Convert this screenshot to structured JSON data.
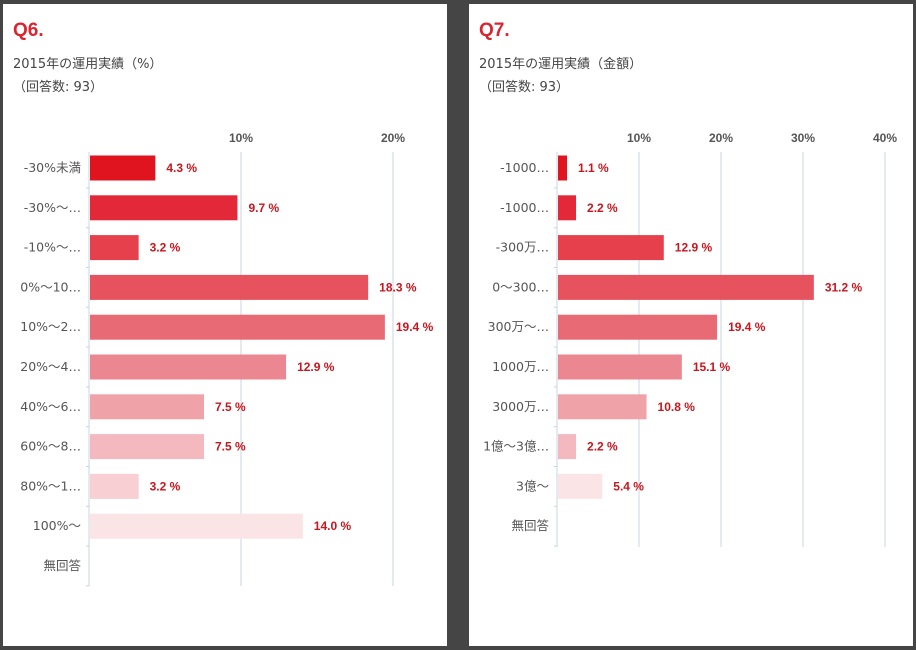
{
  "chart_data": [
    {
      "type": "bar",
      "orientation": "horizontal",
      "panel_label": "Q6.",
      "title": "2015年の運用実績（%）",
      "subtitle": "（回答数: 93）",
      "xlim": [
        0,
        22
      ],
      "ticks": [
        {
          "value": 10,
          "label": "10%"
        },
        {
          "value": 20,
          "label": "20%"
        }
      ],
      "grid": true,
      "categories": [
        "-30%未満",
        "-30%～…",
        "-10%～…",
        "0%～10…",
        "10%～2…",
        "20%～4…",
        "40%～6…",
        "60%～8…",
        "80%～1…",
        "100%～",
        "無回答"
      ],
      "values": [
        4.3,
        9.7,
        3.2,
        18.3,
        19.4,
        12.9,
        7.5,
        7.5,
        3.2,
        14.0,
        null
      ],
      "value_labels": [
        "4.3 %",
        "9.7 %",
        "3.2 %",
        "18.3 %",
        "19.4 %",
        "12.9 %",
        "7.5 %",
        "7.5 %",
        "3.2 %",
        "14.0 %",
        ""
      ],
      "colors": [
        "#e0141f",
        "#e3283a",
        "#e5404b",
        "#e6535f",
        "#e76a75",
        "#ea8791",
        "#f0a2a9",
        "#f4b9be",
        "#f8cfd2",
        "#fbe4e6",
        "#ffffff"
      ]
    },
    {
      "type": "bar",
      "orientation": "horizontal",
      "panel_label": "Q7.",
      "title": "2015年の運用実績（金額）",
      "subtitle": "（回答数: 93）",
      "xlim": [
        0,
        40
      ],
      "ticks": [
        {
          "value": 10,
          "label": "10%"
        },
        {
          "value": 20,
          "label": "20%"
        },
        {
          "value": 30,
          "label": "30%"
        },
        {
          "value": 40,
          "label": "40%"
        }
      ],
      "grid": true,
      "categories": [
        "-1000…",
        "-1000…",
        "-300万…",
        "0～300…",
        "300万～…",
        "1000万…",
        "3000万…",
        "1億～3億…",
        "3億～",
        "無回答"
      ],
      "values": [
        1.1,
        2.2,
        12.9,
        31.2,
        19.4,
        15.1,
        10.8,
        2.2,
        5.4,
        null
      ],
      "value_labels": [
        "1.1 %",
        "2.2 %",
        "12.9 %",
        "31.2 %",
        "19.4 %",
        "15.1 %",
        "10.8 %",
        "2.2 %",
        "5.4 %",
        ""
      ],
      "colors": [
        "#e0141f",
        "#e3283a",
        "#e5404b",
        "#e6535f",
        "#e76a75",
        "#ea8791",
        "#f0a2a9",
        "#f4b9be",
        "#fbe4e6",
        "#ffffff"
      ]
    }
  ]
}
